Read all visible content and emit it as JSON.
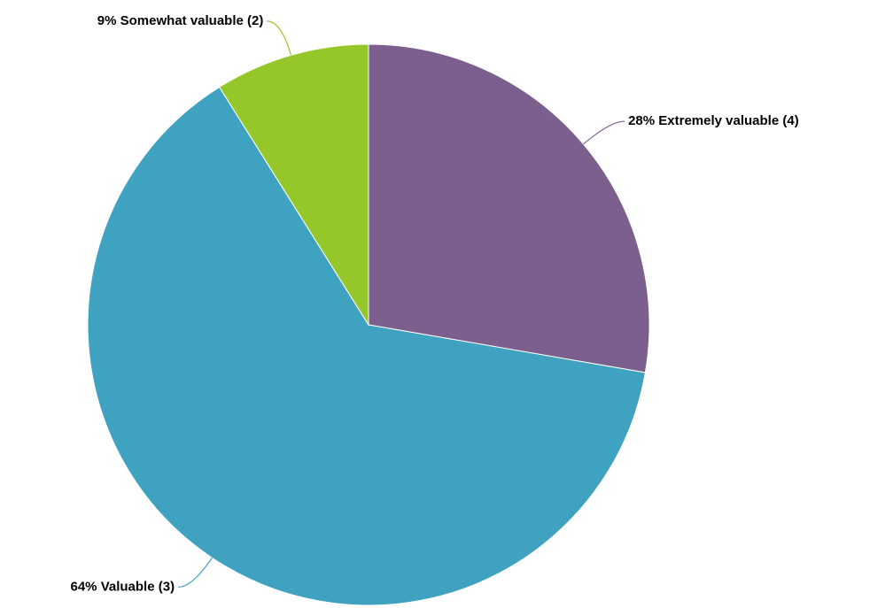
{
  "chart_data": {
    "type": "pie",
    "categories": [
      "Extremely valuable (4)",
      "Valuable (3)",
      "Somewhat valuable (2)"
    ],
    "values": [
      28,
      64,
      9
    ],
    "value_labels": [
      "28%",
      "64%",
      "9%"
    ],
    "colors": [
      "#7b5f8f",
      "#3fa2c1",
      "#96c72a"
    ]
  }
}
